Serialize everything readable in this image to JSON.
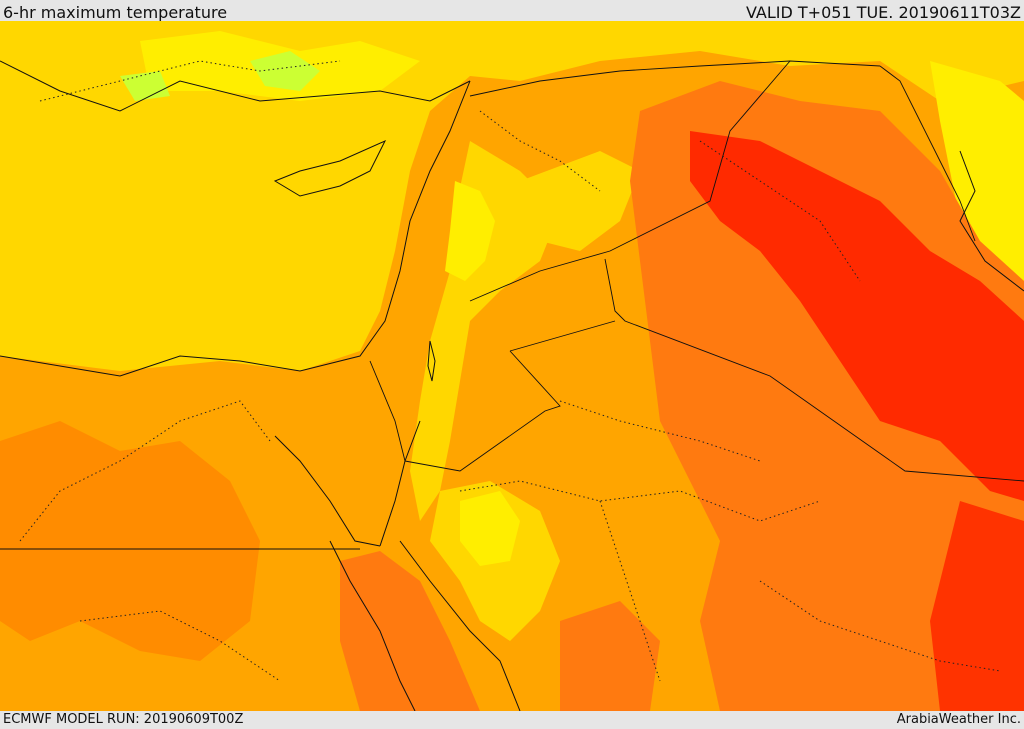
{
  "header": {
    "title": "6-hr maximum temperature",
    "valid_time": "VALID T+051 TUE. 20190611T03Z"
  },
  "footer": {
    "model_run": "ECMWF MODEL RUN: 20190609T00Z",
    "credit": "ArabiaWeather Inc."
  },
  "colors": {
    "band_cool": "#ccff33",
    "band_mild": "#ffee00",
    "band_warm": "#ffd700",
    "band_hot": "#ffa500",
    "band_very_hot": "#ff7a10",
    "band_extreme": "#ff2a00"
  }
}
